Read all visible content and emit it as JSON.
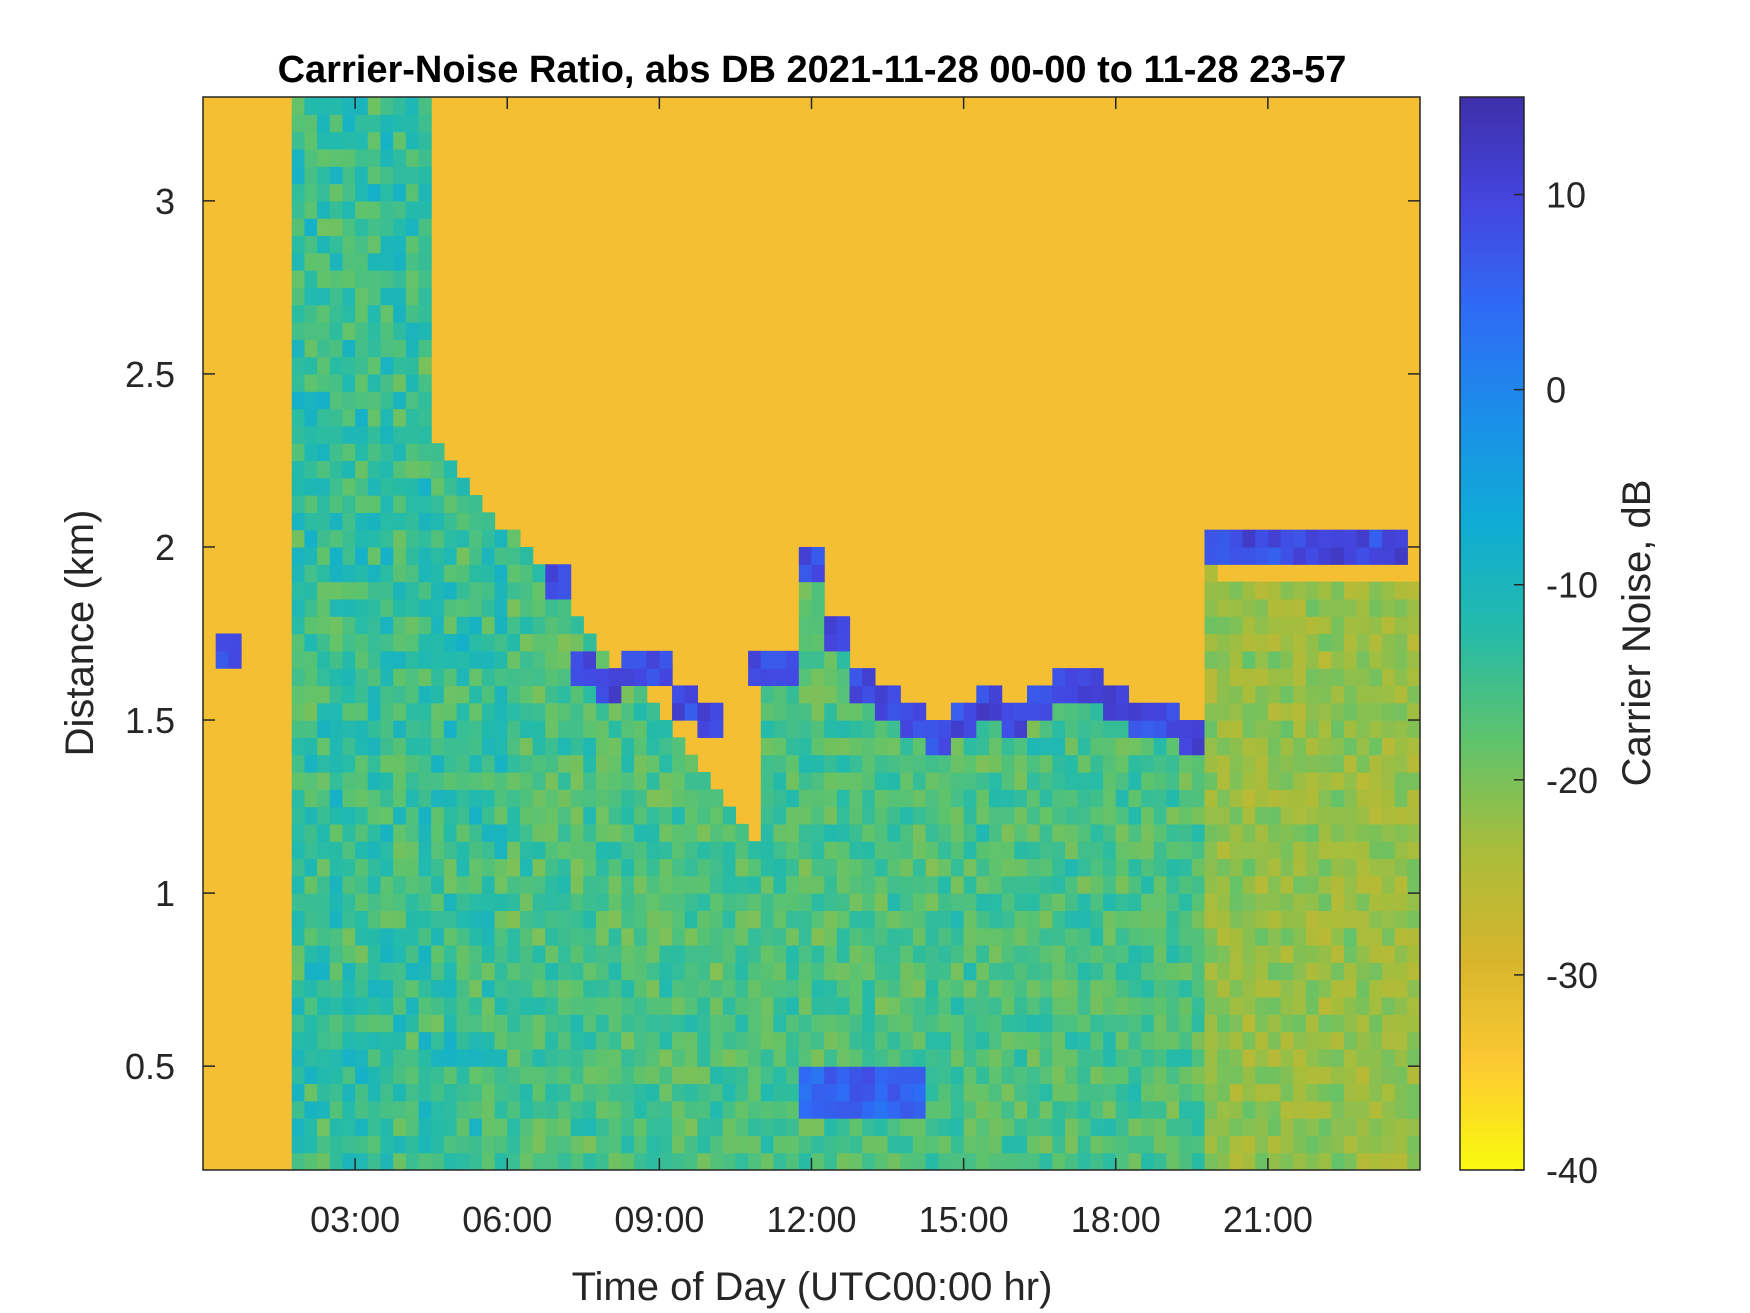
{
  "chart_data": {
    "type": "heatmap",
    "title": "Carrier-Noise Ratio, abs DB 2021-11-28 00-00 to 11-28 23-57",
    "xlabel": "Time of Day (UTC00:00 hr)",
    "ylabel": "Distance (km)",
    "colorbar_label": "Carrier Noise, dB",
    "x_range_hours": [
      0,
      24
    ],
    "y_range_km": [
      0.2,
      3.3
    ],
    "color_range_db": [
      -40,
      15
    ],
    "colormap": "parula",
    "grid": false,
    "x_ticks": [
      {
        "value": 3,
        "label": "03:00"
      },
      {
        "value": 6,
        "label": "06:00"
      },
      {
        "value": 9,
        "label": "09:00"
      },
      {
        "value": 12,
        "label": "12:00"
      },
      {
        "value": 15,
        "label": "15:00"
      },
      {
        "value": 18,
        "label": "18:00"
      },
      {
        "value": 21,
        "label": "21:00"
      }
    ],
    "y_ticks": [
      {
        "value": 0.5,
        "label": "0.5"
      },
      {
        "value": 1,
        "label": "1"
      },
      {
        "value": 1.5,
        "label": "1.5"
      },
      {
        "value": 2,
        "label": "2"
      },
      {
        "value": 2.5,
        "label": "2.5"
      },
      {
        "value": 3,
        "label": "3"
      }
    ],
    "colorbar_ticks": [
      {
        "value": 10,
        "label": "10"
      },
      {
        "value": 0,
        "label": "0"
      },
      {
        "value": -10,
        "label": "-10"
      },
      {
        "value": -20,
        "label": "-20"
      },
      {
        "value": -30,
        "label": "-30"
      },
      {
        "value": -40,
        "label": "-40"
      }
    ],
    "background_level_db": -32,
    "cloud_layer_km": [
      [
        0,
        null
      ],
      [
        0.5,
        1.7
      ],
      [
        1,
        null
      ],
      [
        2,
        null
      ],
      [
        3,
        null
      ],
      [
        4,
        null
      ],
      [
        5,
        null
      ],
      [
        6,
        null
      ],
      [
        7,
        1.9
      ],
      [
        7.5,
        1.65
      ],
      [
        8,
        1.6
      ],
      [
        8.5,
        1.65
      ],
      [
        9,
        1.65
      ],
      [
        9.5,
        1.55
      ],
      [
        10,
        1.5
      ],
      [
        11,
        1.65
      ],
      [
        11.5,
        1.65
      ],
      [
        12,
        1.95
      ],
      [
        12.5,
        1.75
      ],
      [
        13,
        1.6
      ],
      [
        13.5,
        1.55
      ],
      [
        14,
        1.5
      ],
      [
        14.5,
        1.45
      ],
      [
        15,
        1.5
      ],
      [
        15.5,
        1.55
      ],
      [
        16,
        1.5
      ],
      [
        16.5,
        1.55
      ],
      [
        17,
        1.6
      ],
      [
        17.5,
        1.6
      ],
      [
        18,
        1.55
      ],
      [
        18.5,
        1.5
      ],
      [
        19,
        1.5
      ],
      [
        19.5,
        1.45
      ],
      [
        20,
        2.0
      ],
      [
        20.5,
        2.0
      ],
      [
        21,
        2.0
      ],
      [
        21.5,
        2.0
      ],
      [
        22,
        2.0
      ],
      [
        22.5,
        2.0
      ],
      [
        23,
        2.0
      ],
      [
        23.5,
        2.0
      ]
    ]
  }
}
